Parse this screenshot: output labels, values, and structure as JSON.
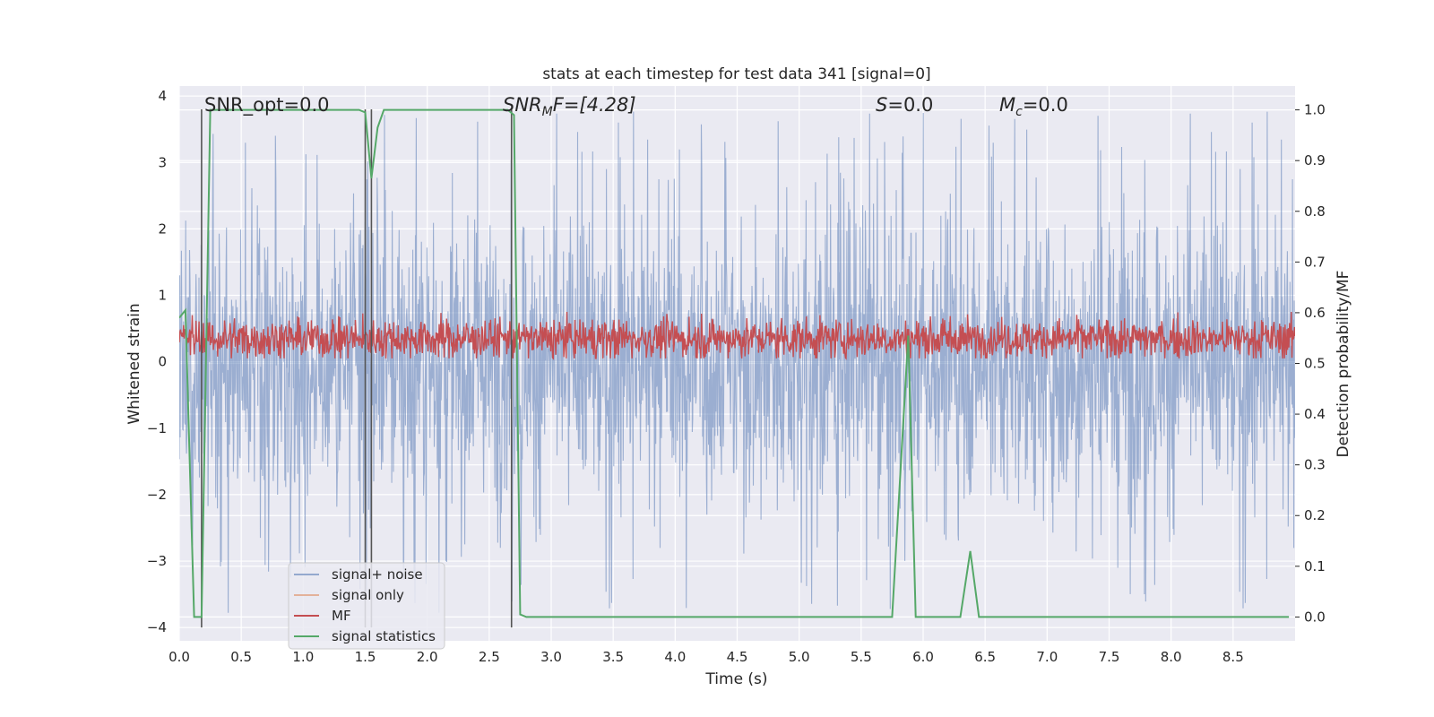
{
  "chart_data": {
    "type": "line",
    "title": "stats at each timestep for test data 341 [signal=0]",
    "xlabel": "Time (s)",
    "ylabel": "Whitened strain",
    "y2label": "Detection probability/MF",
    "xlim": [
      0.0,
      9.0
    ],
    "ylim": [
      -4.2,
      4.15
    ],
    "y2lim": [
      -0.047,
      1.047
    ],
    "xticks": [
      "0.0",
      "0.5",
      "1.0",
      "1.5",
      "2.0",
      "2.5",
      "3.0",
      "3.5",
      "4.0",
      "4.5",
      "5.0",
      "5.5",
      "6.0",
      "6.5",
      "7.0",
      "7.5",
      "8.0",
      "8.5"
    ],
    "yticks": [
      "4",
      "3",
      "2",
      "1",
      "0",
      "−1",
      "−2",
      "−3",
      "−4"
    ],
    "y2ticks": [
      "1.0",
      "0.9",
      "0.8",
      "0.7",
      "0.6",
      "0.5",
      "0.4",
      "0.3",
      "0.2",
      "0.1",
      "0.0"
    ],
    "grid": true,
    "legend_position": "lower-left",
    "annotations": {
      "snr_opt": "SNR_opt=0.0",
      "snr_mf_main": "SNR",
      "snr_mf_sub": "M",
      "snr_mf_rest": "F=[4.28]",
      "s_main": "S",
      "s_rest": "=0.0",
      "mc_main": "M",
      "mc_sub": "c",
      "mc_rest": "=0.0"
    },
    "series": [
      {
        "name": "signal+ noise",
        "color": "#4c72b0",
        "axis": "left",
        "note": "noise band roughly between -2.5 and 2.2 with spikes up to ~3.8 and down to ~-4"
      },
      {
        "name": "signal only",
        "color": "#dd8452",
        "axis": "left",
        "values": []
      },
      {
        "name": "MF",
        "color": "#c44e52",
        "axis": "left",
        "note": "band roughly between 0.05 and 0.7"
      },
      {
        "name": "signal statistics",
        "color": "#55a868",
        "axis": "right",
        "x": [
          0.0,
          0.05,
          0.12,
          0.18,
          0.25,
          0.3,
          1.45,
          1.5,
          1.55,
          1.6,
          1.65,
          1.7,
          2.65,
          2.7,
          2.75,
          2.8,
          5.75,
          5.88,
          5.94,
          6.3,
          6.38,
          6.45,
          8.95
        ],
        "values": [
          0.59,
          0.605,
          0.0,
          0.0,
          1.0,
          1.0,
          1.0,
          0.995,
          0.865,
          0.965,
          1.0,
          1.0,
          1.0,
          0.99,
          0.005,
          0.0,
          0.0,
          0.555,
          0.0,
          0.0,
          0.13,
          0.0,
          0.0
        ]
      }
    ],
    "vertical_lines_x": [
      0.18,
      1.5,
      1.55,
      2.68
    ],
    "vertical_lines_range": [
      -4.0,
      3.8
    ]
  }
}
